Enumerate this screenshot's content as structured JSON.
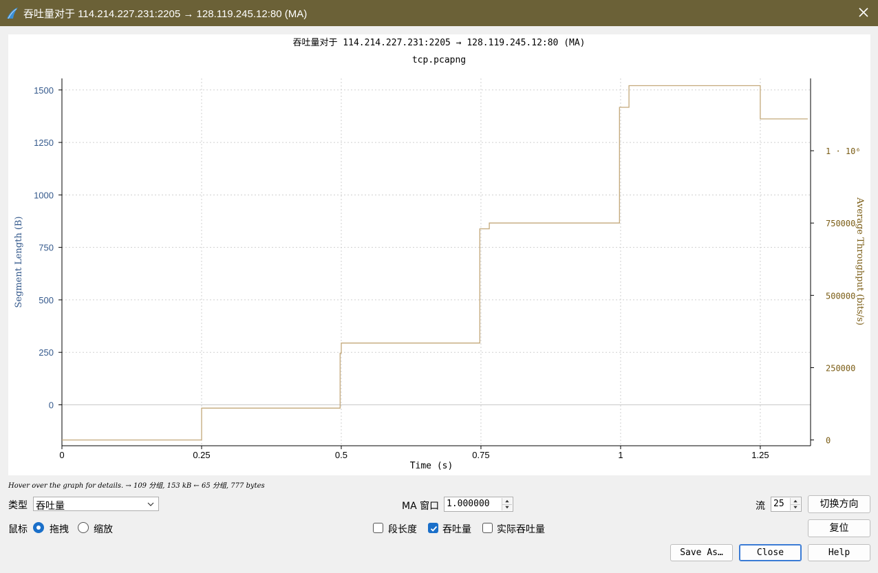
{
  "window": {
    "title": "吞吐量对于 114.214.227.231:2205 → 128.119.245.12:80 (MA)"
  },
  "plot": {
    "title": "吞吐量对于 114.214.227.231:2205 → 128.119.245.12:80 (MA)",
    "subtitle": "tcp.pcapng"
  },
  "chart_data": {
    "type": "line",
    "title": "吞吐量对于 114.214.227.231:2205 → 128.119.245.12:80 (MA)",
    "subtitle": "tcp.pcapng",
    "xlabel": "Time (s)",
    "ylabel_left": "Segment Length (B)",
    "ylabel_right": "Average Throughput (bits/s)",
    "x_ticks": [
      "0",
      "0.25",
      "0.5",
      "0.75",
      "1",
      "1.25"
    ],
    "y_left_ticks": [
      "0",
      "250",
      "500",
      "750",
      "1000",
      "1250",
      "1500"
    ],
    "y_right_ticks": [
      "0",
      "250000",
      "500000",
      "750000",
      "1 · 10⁶"
    ],
    "xlim": [
      0,
      1.34
    ],
    "ylim_left": [
      -195,
      1555
    ],
    "ylim_right": [
      -20000,
      1250000
    ],
    "grid": true,
    "series": [
      {
        "axis": "right",
        "color": "#c3a879",
        "x": [
          0,
          0.25,
          0.25,
          0.498,
          0.498,
          0.5,
          0.5,
          0.748,
          0.748,
          0.765,
          0.765,
          0.998,
          0.998,
          1.015,
          1.015,
          1.25,
          1.25,
          1.335
        ],
        "y": [
          0,
          0,
          110000,
          110000,
          300000,
          300000,
          335000,
          335000,
          730000,
          730000,
          750000,
          750000,
          1150000,
          1150000,
          1225000,
          1225000,
          1110000,
          1110000
        ]
      }
    ]
  },
  "status": {
    "hover_text": "Hover over the graph for details. → 109 分组, 153 kB ← 65 分组, 777 bytes"
  },
  "controls": {
    "type_label": "类型",
    "type_value": "吞吐量",
    "ma_window_label": "MA 窗口",
    "ma_window_value": "1.000000",
    "stream_label": "流",
    "stream_value": "25",
    "switch_direction_button": "切换方向",
    "mouse_label": "鼠标",
    "drag_option": "拖拽",
    "zoom_option": "缩放",
    "segment_length_option": "段长度",
    "throughput_option": "吞吐量",
    "goodput_option": "实际吞吐量",
    "reset_button": "复位",
    "save_as_button": "Save As…",
    "close_button": "Close",
    "help_button": "Help"
  },
  "colors": {
    "titlebar": "#6b6137",
    "left_axis": "#34598c",
    "right_axis": "#7a5c14",
    "series": "#c3a879",
    "accent": "#1a6fc9"
  }
}
